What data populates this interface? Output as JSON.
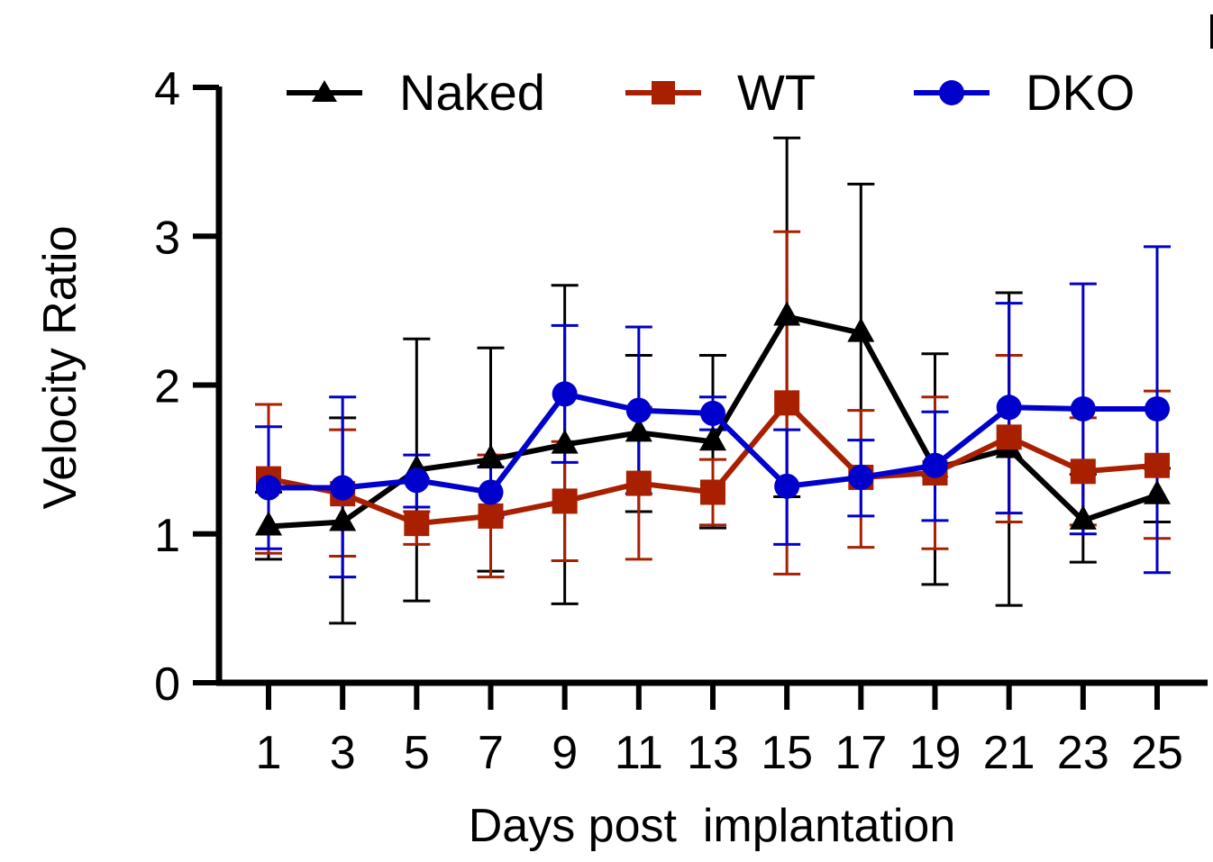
{
  "chart_data": {
    "type": "line",
    "title": "",
    "xlabel": "Days post  implantation",
    "ylabel": "Velocity Ratio",
    "xlim": [
      1,
      25
    ],
    "ylim": [
      0,
      4
    ],
    "x_ticks": [
      "1",
      "3",
      "5",
      "7",
      "9",
      "11",
      "13",
      "15",
      "17",
      "19",
      "21",
      "23",
      "25"
    ],
    "y_ticks": [
      "0",
      "1",
      "2",
      "3",
      "4"
    ],
    "x": [
      1,
      3,
      5,
      7,
      9,
      11,
      13,
      15,
      17,
      19,
      21,
      23,
      25
    ],
    "legend_position": "top",
    "series": [
      {
        "name": "Naked",
        "color": "#000000",
        "marker": "triangle",
        "values": [
          1.05,
          1.08,
          1.43,
          1.5,
          1.6,
          1.68,
          1.62,
          2.46,
          2.35,
          1.44,
          1.57,
          1.09,
          1.26
        ],
        "error_upper": [
          1.28,
          1.78,
          2.31,
          2.25,
          2.67,
          2.2,
          2.2,
          3.66,
          3.35,
          2.21,
          2.62,
          1.4,
          1.44
        ],
        "error_lower": [
          0.83,
          0.4,
          0.55,
          0.75,
          0.53,
          1.15,
          1.04,
          1.25,
          1.38,
          0.66,
          0.52,
          0.81,
          1.08
        ]
      },
      {
        "name": "WT",
        "color": "#A82000",
        "marker": "square",
        "values": [
          1.37,
          1.27,
          1.07,
          1.12,
          1.22,
          1.34,
          1.28,
          1.88,
          1.38,
          1.41,
          1.65,
          1.42,
          1.46
        ],
        "error_upper": [
          1.87,
          1.7,
          1.15,
          1.53,
          1.62,
          1.85,
          1.5,
          3.03,
          1.83,
          1.92,
          2.2,
          1.78,
          1.96
        ],
        "error_lower": [
          0.87,
          0.85,
          0.93,
          0.71,
          0.82,
          0.83,
          1.06,
          0.73,
          0.91,
          0.9,
          1.08,
          1.06,
          0.97
        ]
      },
      {
        "name": "DKO",
        "color": "#0000CC",
        "marker": "circle",
        "values": [
          1.31,
          1.31,
          1.36,
          1.28,
          1.94,
          1.83,
          1.81,
          1.32,
          1.38,
          1.46,
          1.85,
          1.84,
          1.84
        ],
        "error_upper": [
          1.72,
          1.92,
          1.53,
          1.45,
          2.4,
          2.39,
          1.92,
          1.7,
          1.63,
          1.82,
          2.55,
          2.68,
          2.93
        ],
        "error_lower": [
          0.9,
          0.71,
          1.18,
          1.11,
          1.48,
          1.27,
          1.7,
          0.93,
          1.12,
          1.09,
          1.14,
          1.0,
          0.74
        ]
      }
    ]
  }
}
